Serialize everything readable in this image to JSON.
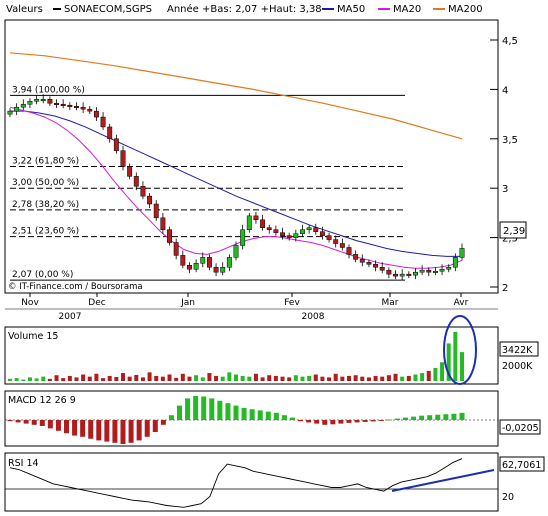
{
  "header": {
    "label": "Valeurs",
    "ticker": "SONAECOM,SGPS",
    "range_text": "Année +Bas: 2,07 +Haut: 3,38",
    "legend": [
      {
        "name": "MA50",
        "color": "#1c1ca8"
      },
      {
        "name": "MA20",
        "color": "#d21fd2"
      },
      {
        "name": "MA200",
        "color": "#e07a1f"
      }
    ]
  },
  "credit": "© IT-Finance.com / Boursorama",
  "colors": {
    "up": "#25b925",
    "down": "#b31c1c",
    "frame": "#000000",
    "grid": "#c8c8c8",
    "annotation": "#1a2fb5"
  },
  "chart_data": [
    {
      "type": "candlestick",
      "id": "price",
      "y_ticks": [
        "2",
        "2,5",
        "3",
        "3,5",
        "4",
        "4,5"
      ],
      "ylim": [
        1.98,
        4.8
      ],
      "current_price": "2,39",
      "fibonacci_levels": [
        {
          "label": "3,94 (100,00 %)",
          "value": 3.94
        },
        {
          "label": "3,22 (61,80 %)",
          "value": 3.22
        },
        {
          "label": "3,00 (50,00 %)",
          "value": 3.0
        },
        {
          "label": "2,78 (38,20 %)",
          "value": 2.78
        },
        {
          "label": "2,51 (23,60 %)",
          "value": 2.51
        },
        {
          "label": "2,07 (0,00 %)",
          "value": 2.07
        }
      ],
      "x_months": [
        "Nov",
        "Dec",
        "Jan",
        "Fev",
        "Mar",
        "Avr"
      ],
      "x_years": [
        "2007",
        "2008"
      ],
      "close_series": [
        3.78,
        3.82,
        3.85,
        3.88,
        3.9,
        3.9,
        3.86,
        3.85,
        3.84,
        3.83,
        3.82,
        3.8,
        3.78,
        3.72,
        3.62,
        3.5,
        3.38,
        3.22,
        3.12,
        3.02,
        2.92,
        2.84,
        2.7,
        2.58,
        2.45,
        2.32,
        2.22,
        2.18,
        2.24,
        2.3,
        2.2,
        2.15,
        2.2,
        2.3,
        2.42,
        2.58,
        2.72,
        2.68,
        2.6,
        2.58,
        2.55,
        2.52,
        2.5,
        2.54,
        2.58,
        2.6,
        2.56,
        2.52,
        2.48,
        2.44,
        2.4,
        2.33,
        2.28,
        2.25,
        2.23,
        2.2,
        2.17,
        2.13,
        2.11,
        2.13,
        2.12,
        2.15,
        2.17,
        2.15,
        2.16,
        2.18,
        2.2,
        2.3,
        2.39
      ],
      "ma20": [
        3.82,
        3.79,
        3.76,
        3.72,
        3.66,
        3.58,
        3.48,
        3.36,
        3.22,
        3.07,
        2.93,
        2.8,
        2.68,
        2.56,
        2.46,
        2.38,
        2.34,
        2.33,
        2.36,
        2.41,
        2.46,
        2.49,
        2.51,
        2.51,
        2.49,
        2.47,
        2.45,
        2.42,
        2.38,
        2.34,
        2.3,
        2.27,
        2.24,
        2.22,
        2.2,
        2.19,
        2.19,
        2.2,
        2.22,
        2.27
      ],
      "ma50": [
        3.78,
        3.78,
        3.76,
        3.73,
        3.68,
        3.62,
        3.55,
        3.48,
        3.41,
        3.34,
        3.27,
        3.2,
        3.13,
        3.06,
        2.99,
        2.92,
        2.86,
        2.8,
        2.74,
        2.68,
        2.62,
        2.57,
        2.52,
        2.47,
        2.43,
        2.39,
        2.36,
        2.34,
        2.32,
        2.31,
        2.31
      ],
      "ma200": [
        4.37,
        4.34,
        4.29,
        4.24,
        4.18,
        4.12,
        4.06,
        4.0,
        3.93,
        3.86,
        3.78,
        3.7,
        3.6,
        3.5
      ]
    },
    {
      "type": "bar",
      "id": "volume",
      "title": "Volume 15",
      "y_ticks": [
        "3422K",
        "2000K"
      ],
      "values": [
        0.15,
        0.2,
        0.1,
        0.25,
        0.18,
        0.3,
        0.15,
        0.4,
        0.2,
        0.35,
        0.25,
        0.45,
        0.3,
        0.5,
        0.2,
        0.35,
        0.28,
        0.55,
        0.3,
        0.42,
        0.25,
        0.6,
        0.35,
        0.3,
        0.45,
        0.22,
        0.5,
        0.3,
        0.4,
        0.25,
        0.55,
        0.35,
        0.3,
        0.6,
        0.45,
        0.35,
        0.3,
        0.5,
        0.25,
        0.4,
        0.35,
        0.3,
        0.25,
        0.4,
        0.3,
        0.35,
        0.45,
        0.3,
        0.25,
        0.5,
        0.3,
        0.35,
        0.4,
        0.3,
        0.25,
        0.35,
        0.3,
        0.4,
        0.5,
        0.3,
        0.35,
        0.45,
        0.55,
        0.7,
        0.9,
        1.3,
        2.6,
        3.4,
        2.0
      ]
    },
    {
      "type": "bar",
      "id": "macd",
      "title": "MACD 12 26 9",
      "current_value": "-0,0205",
      "values": [
        -0.05,
        -0.1,
        -0.15,
        -0.2,
        -0.25,
        -0.35,
        -0.45,
        -0.55,
        -0.65,
        -0.7,
        -0.78,
        -0.85,
        -0.9,
        -0.95,
        -1.0,
        -0.95,
        -0.85,
        -0.7,
        -0.5,
        -0.2,
        0.2,
        0.6,
        0.9,
        1.0,
        0.98,
        0.9,
        0.8,
        0.7,
        0.6,
        0.5,
        0.45,
        0.4,
        0.35,
        0.3,
        0.2,
        0.1,
        -0.05,
        -0.1,
        -0.15,
        -0.2,
        -0.18,
        -0.15,
        -0.12,
        -0.1,
        -0.08,
        -0.06,
        -0.04,
        0.02,
        0.06,
        0.1,
        0.14,
        0.18,
        0.2,
        0.22,
        0.24,
        0.26,
        0.3
      ]
    },
    {
      "type": "line",
      "id": "rsi",
      "title": "RSI 14",
      "current_value": "62,7061",
      "y_ticks": [
        "20"
      ],
      "values": [
        62,
        60,
        56,
        52,
        48,
        44,
        42,
        40,
        38,
        36,
        34,
        32,
        30,
        28,
        26,
        25,
        24,
        22,
        20,
        19,
        18,
        20,
        22,
        30,
        55,
        66,
        64,
        62,
        58,
        56,
        54,
        52,
        50,
        48,
        46,
        44,
        42,
        40,
        40,
        42,
        44,
        40,
        38,
        36,
        42,
        46,
        48,
        50,
        52,
        56,
        62,
        68,
        72
      ]
    }
  ]
}
